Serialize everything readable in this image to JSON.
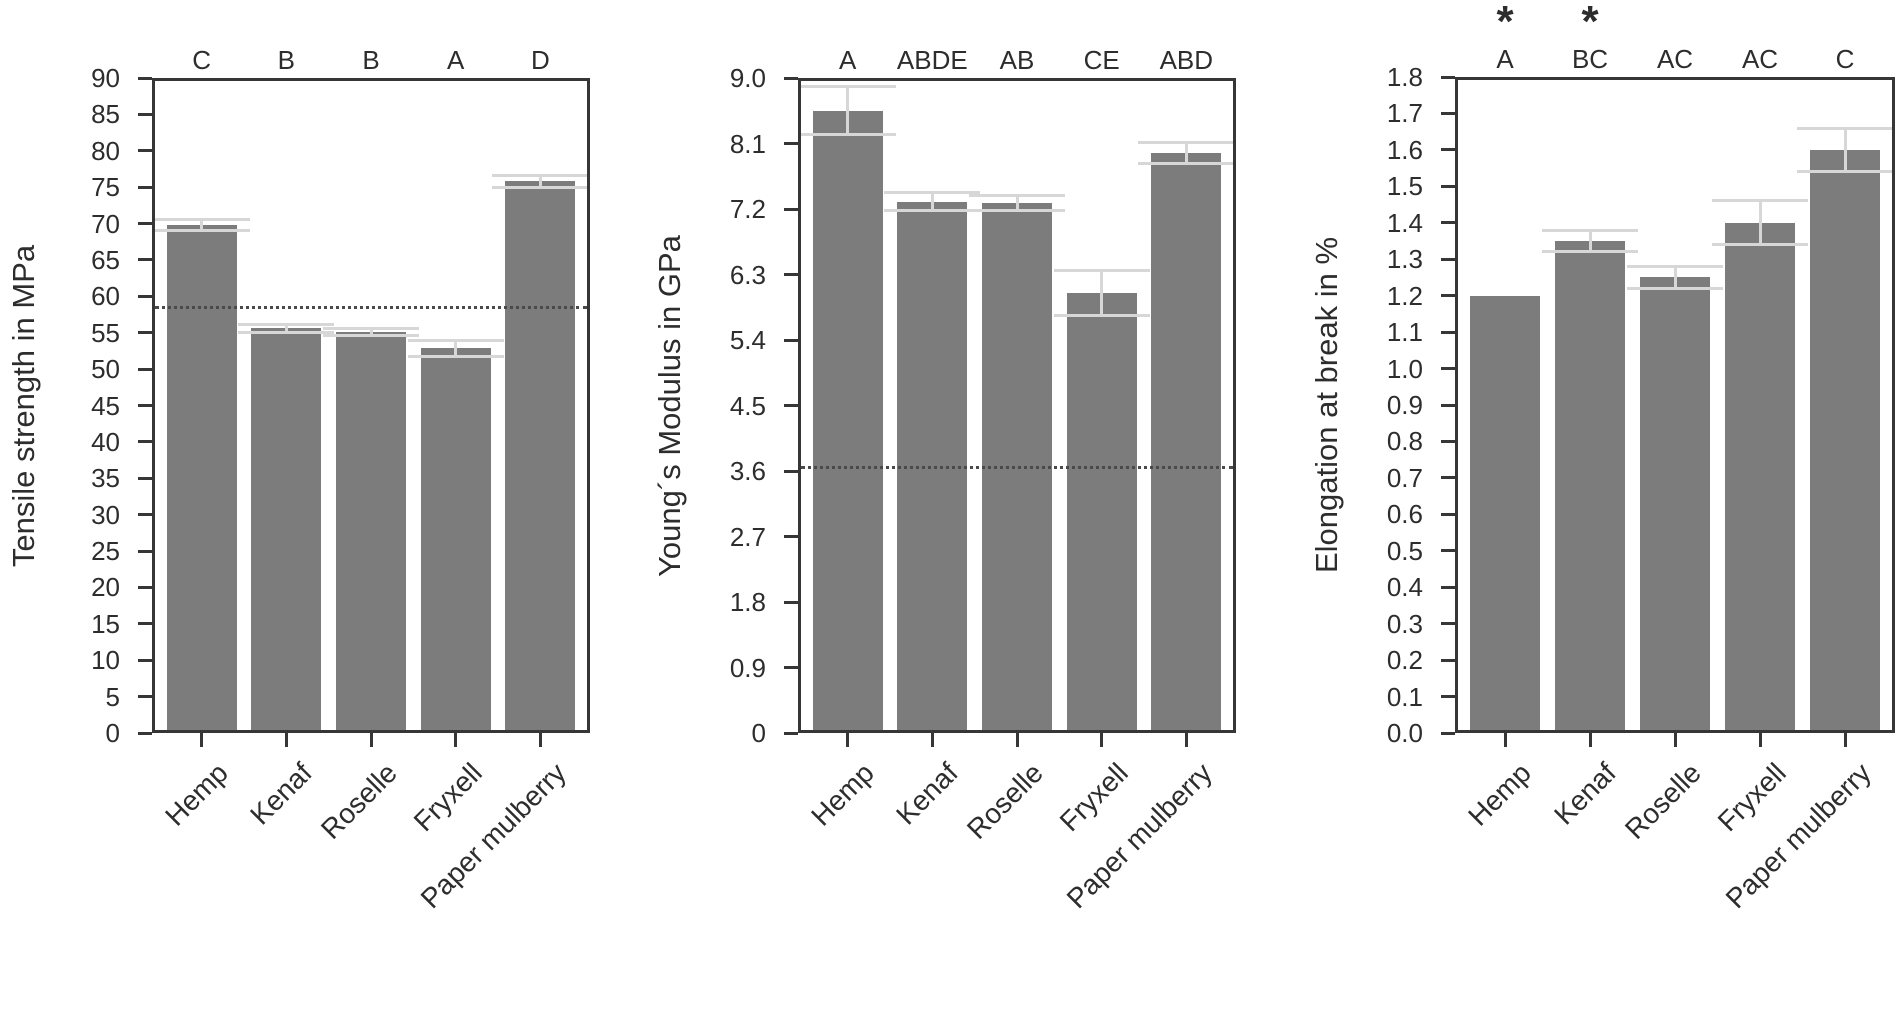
{
  "figure": {
    "description": "Three bar charts comparing mechanical properties of natural fibers",
    "background": "#ffffff"
  },
  "colors": {
    "bar": "#7c7c7c",
    "error_bar": "#d7d7d7",
    "axis": "#363636",
    "text": "#2d2d2d",
    "reference_line": "#4a4a4a"
  },
  "chart_data": [
    {
      "type": "bar",
      "title": "",
      "ylabel": "Tensile strength in MPa",
      "xlabel": "",
      "categories": [
        "Hemp",
        "Kenaf",
        "Roselle",
        "Fryxell",
        "Paper mulberry"
      ],
      "values": [
        69.8,
        55.6,
        55.1,
        52.9,
        75.8
      ],
      "errors": [
        0.7,
        0.55,
        0.5,
        1.1,
        0.8
      ],
      "group_labels": [
        "C",
        "B",
        "B",
        "A",
        "D"
      ],
      "significance_markers": [
        "",
        "",
        "",
        "",
        ""
      ],
      "reference_line": 58.4,
      "ylim": [
        0,
        90
      ],
      "ytick_step": 5,
      "ytick_labels": [
        "0",
        "5",
        "10",
        "15",
        "20",
        "25",
        "30",
        "35",
        "40",
        "45",
        "50",
        "55",
        "60",
        "65",
        "70",
        "75",
        "80",
        "85",
        "90"
      ],
      "grid": false,
      "legend": null
    },
    {
      "type": "bar",
      "title": "",
      "ylabel": "Young´s Modulus in GPa",
      "xlabel": "",
      "categories": [
        "Hemp",
        "Kenaf",
        "Roselle",
        "Fryxell",
        "Paper mulberry"
      ],
      "values": [
        8.55,
        7.3,
        7.28,
        6.05,
        7.97
      ],
      "errors": [
        0.33,
        0.12,
        0.1,
        0.31,
        0.14
      ],
      "group_labels": [
        "A",
        "ABDE",
        "AB",
        "CE",
        "ABD"
      ],
      "significance_markers": [
        "",
        "",
        "",
        "",
        ""
      ],
      "reference_line": 3.65,
      "ylim": [
        0,
        9
      ],
      "ytick_step": 0.9,
      "ytick_labels": [
        "0",
        "0.9",
        "1.8",
        "2.7",
        "3.6",
        "4.5",
        "5.4",
        "6.3",
        "7.2",
        "8.1",
        "9.0"
      ],
      "grid": false,
      "legend": null
    },
    {
      "type": "bar",
      "title": "",
      "ylabel": "Elongation at break in %",
      "xlabel": "",
      "categories": [
        "Hemp",
        "Kenaf",
        "Roselle",
        "Fryxell",
        "Paper mulberry"
      ],
      "values": [
        1.2,
        1.35,
        1.25,
        1.4,
        1.6
      ],
      "errors": [
        0,
        0.03,
        0.03,
        0.06,
        0.06
      ],
      "group_labels": [
        "A",
        "BC",
        "AC",
        "AC",
        "C"
      ],
      "significance_markers": [
        "*",
        "*",
        "",
        "",
        ""
      ],
      "reference_line": null,
      "ylim": [
        0,
        1.8
      ],
      "ytick_step": 0.1,
      "ytick_labels": [
        "0.0",
        "0.1",
        "0.2",
        "0.3",
        "0.4",
        "0.5",
        "0.6",
        "0.7",
        "0.8",
        "0.9",
        "1.0",
        "1.1",
        "1.2",
        "1.3",
        "1.4",
        "1.5",
        "1.6",
        "1.7",
        "1.8"
      ],
      "grid": false,
      "legend": null
    }
  ]
}
